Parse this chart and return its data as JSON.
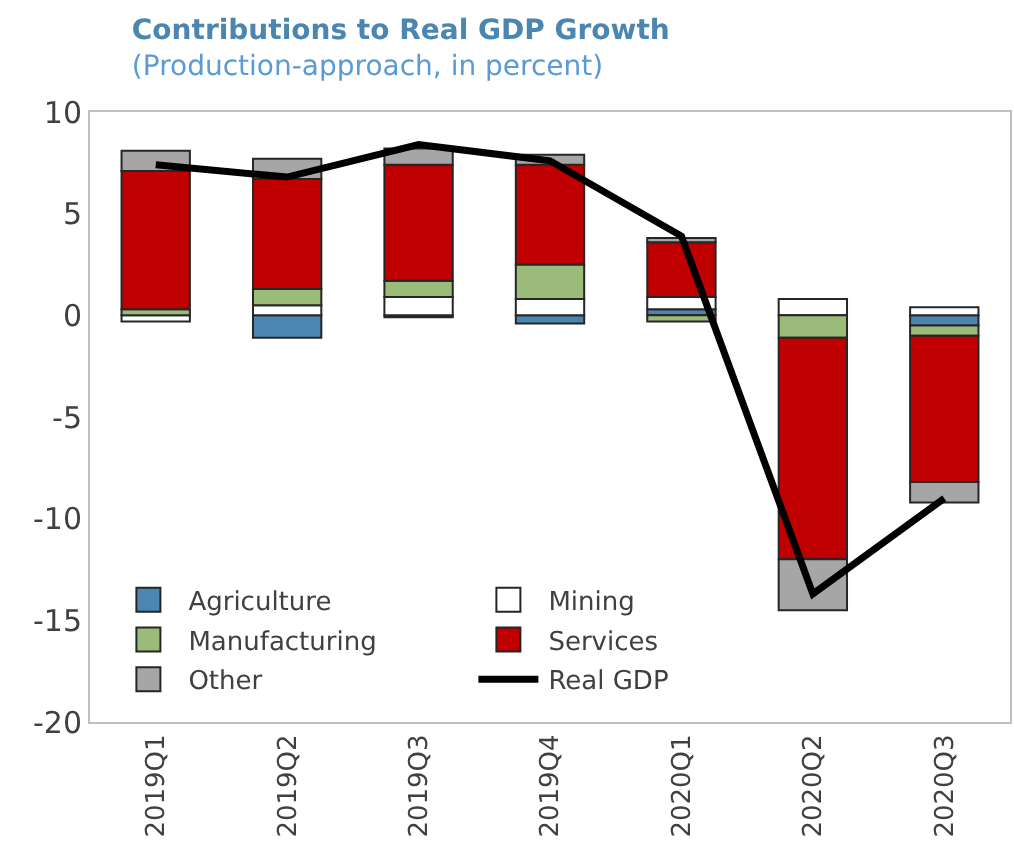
{
  "chart_data": {
    "type": "bar",
    "title": "Contributions to Real GDP Growth",
    "subtitle": "(Production-approach, in percent)",
    "categories": [
      "2019Q1",
      "2019Q2",
      "2019Q3",
      "2019Q4",
      "2020Q1",
      "2020Q2",
      "2020Q3"
    ],
    "stacked": true,
    "series": [
      {
        "name": "Agriculture",
        "color": "#4a86b0",
        "values": [
          0,
          -1.1,
          -0.1,
          -0.4,
          0.3,
          0,
          -0.5
        ]
      },
      {
        "name": "Mining",
        "color": "#ffffff",
        "values": [
          -0.3,
          0.5,
          0.9,
          0.8,
          0.6,
          0.8,
          0.4
        ]
      },
      {
        "name": "Manufacturing",
        "color": "#9bbb7a",
        "values": [
          0.3,
          0.8,
          0.8,
          1.7,
          -0.3,
          -1.1,
          -0.5
        ]
      },
      {
        "name": "Services",
        "color": "#c00000",
        "values": [
          6.8,
          5.4,
          5.7,
          4.9,
          2.7,
          -10.9,
          -7.2
        ]
      },
      {
        "name": "Other",
        "color": "#a6a6a6",
        "values": [
          1.0,
          1.0,
          0.8,
          0.5,
          0.2,
          -2.5,
          -1.0
        ]
      },
      {
        "name": "Real GDP",
        "type": "line",
        "color": "#000000",
        "values": [
          7.4,
          6.8,
          8.4,
          7.6,
          3.9,
          -13.7,
          -9.0
        ]
      }
    ],
    "ylim": [
      -20,
      10
    ],
    "yticks": [
      -20,
      -15,
      -10,
      -5,
      0,
      5,
      10
    ],
    "grid": false,
    "legend": "bottom",
    "marker": "none",
    "line_style": "solid"
  }
}
